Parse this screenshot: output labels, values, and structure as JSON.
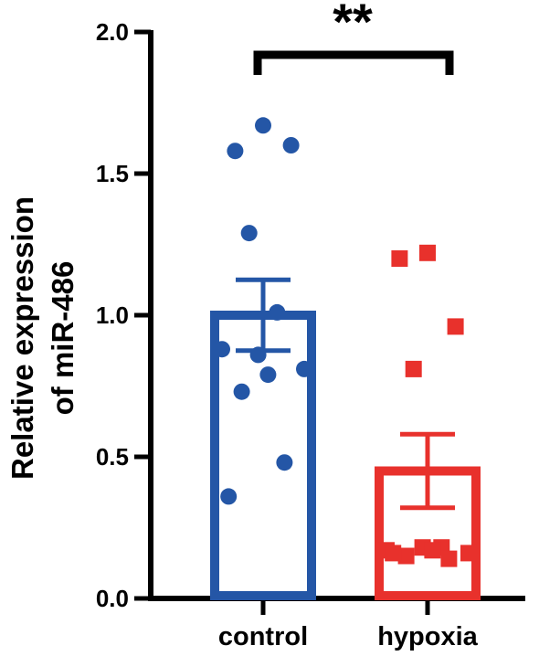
{
  "chart_data": {
    "type": "bar",
    "ylabel_lines": [
      "Relative expression",
      "of miR-486"
    ],
    "ylim": [
      0,
      2.0
    ],
    "yticks": [
      "0.0",
      "0.5",
      "1.0",
      "1.5",
      "2.0"
    ],
    "grid": false,
    "categories": [
      "control",
      "hypoxia"
    ],
    "series": [
      {
        "category": "control",
        "color": "#2456a6",
        "marker": "circle",
        "mean": 1.0,
        "sem": 0.125,
        "points": [
          1.67,
          1.58,
          1.6,
          1.29,
          1.01,
          0.88,
          0.81,
          0.86,
          0.79,
          0.73,
          0.48,
          0.36
        ]
      },
      {
        "category": "hypoxia",
        "color": "#e8312c",
        "marker": "square",
        "mean": 0.45,
        "sem": 0.13,
        "points": [
          1.22,
          1.2,
          0.96,
          0.81,
          0.18,
          0.17,
          0.16,
          0.18,
          0.17,
          0.15,
          0.14,
          0.16
        ]
      }
    ],
    "significance": {
      "between": [
        "control",
        "hypoxia"
      ],
      "label": "**"
    }
  }
}
